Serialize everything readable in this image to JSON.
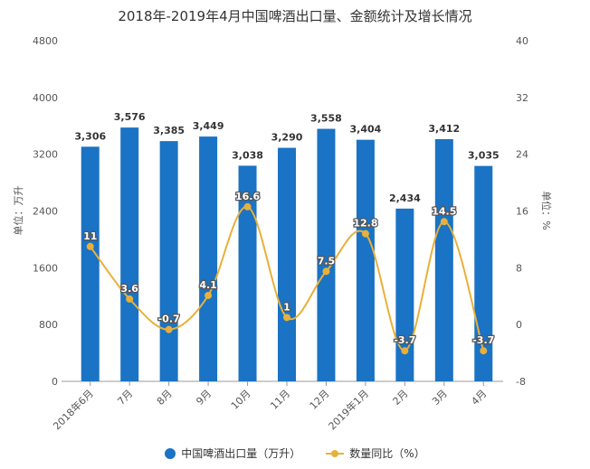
{
  "chart_data": {
    "type": "bar+line",
    "title": "2018年-2019年4月中国啤酒出口量、金额统计及增长情况",
    "categories": [
      "2018年6月",
      "7月",
      "8月",
      "9月",
      "10月",
      "11月",
      "12月",
      "2019年1月",
      "2月",
      "3月",
      "4月"
    ],
    "series": [
      {
        "name": "中国啤酒出口量（万升）",
        "type": "bar",
        "axis": "left",
        "color": "#1a73c4",
        "values": [
          3306,
          3576,
          3385,
          3449,
          3038,
          3290,
          3558,
          3404,
          2434,
          3412,
          3035
        ],
        "labels": [
          "3,306",
          "3,576",
          "3,385",
          "3,449",
          "3,038",
          "3,290",
          "3,558",
          "3,404",
          "2,434",
          "3,412",
          "3,035"
        ]
      },
      {
        "name": "数量同比（%）",
        "type": "line",
        "axis": "right",
        "color": "#e8b03a",
        "values": [
          11,
          3.6,
          -0.7,
          4.1,
          16.6,
          1,
          7.5,
          12.8,
          -3.7,
          14.5,
          -3.7
        ]
      }
    ],
    "ylabel": "单位：万升",
    "y2label": "单位：%",
    "ylim": [
      0,
      4800
    ],
    "yticks": [
      0,
      800,
      1600,
      2400,
      3200,
      4000,
      4800
    ],
    "y2lim": [
      -8,
      40
    ],
    "y2ticks": [
      -8,
      0,
      8,
      16,
      24,
      32,
      40
    ],
    "grid": false,
    "legend": "bottom"
  }
}
